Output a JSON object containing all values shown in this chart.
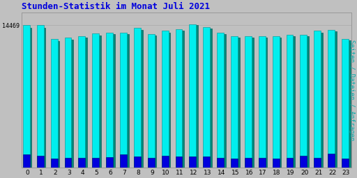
{
  "title": "Stunden-Statistik im Monat Juli 2021",
  "title_color": "#0000dd",
  "title_fontsize": 9,
  "ylabel": "Seiten / Dateien / Anfragen",
  "ylabel_color": "#00aaaa",
  "ylabel_fontsize": 6.5,
  "background_color": "#c0c0c0",
  "plot_bg_color": "#c0c0c0",
  "hours": [
    0,
    1,
    2,
    3,
    4,
    5,
    6,
    7,
    8,
    9,
    10,
    11,
    12,
    13,
    14,
    15,
    16,
    17,
    18,
    19,
    20,
    21,
    22,
    23
  ],
  "cyan_values": [
    14469,
    14469,
    13100,
    13200,
    13400,
    13650,
    13750,
    13750,
    14200,
    13600,
    13900,
    14050,
    14600,
    14300,
    13700,
    13400,
    13400,
    13400,
    13400,
    13500,
    13500,
    13900,
    14000,
    13100
  ],
  "teal_values": [
    14200,
    14200,
    12900,
    13000,
    13200,
    13450,
    13600,
    13600,
    14000,
    13450,
    13750,
    13900,
    14500,
    14150,
    13550,
    13250,
    13250,
    13250,
    13250,
    13350,
    13350,
    13750,
    13850,
    12950
  ],
  "blue_values": [
    1300,
    1200,
    900,
    950,
    1000,
    950,
    1050,
    1300,
    1100,
    980,
    1200,
    1100,
    1150,
    1100,
    980,
    900,
    980,
    950,
    880,
    980,
    1200,
    980,
    1400,
    880
  ],
  "cyan_color": "#00eeee",
  "teal_color": "#008878",
  "blue_color": "#0000dd",
  "ymax": 15800,
  "ytick_val": 14469,
  "ytick_label": "14469",
  "grid_color": "#aaaaaa",
  "grid_linewidth": 0.5,
  "bar_width": 0.38,
  "bar_gap": 0.42
}
